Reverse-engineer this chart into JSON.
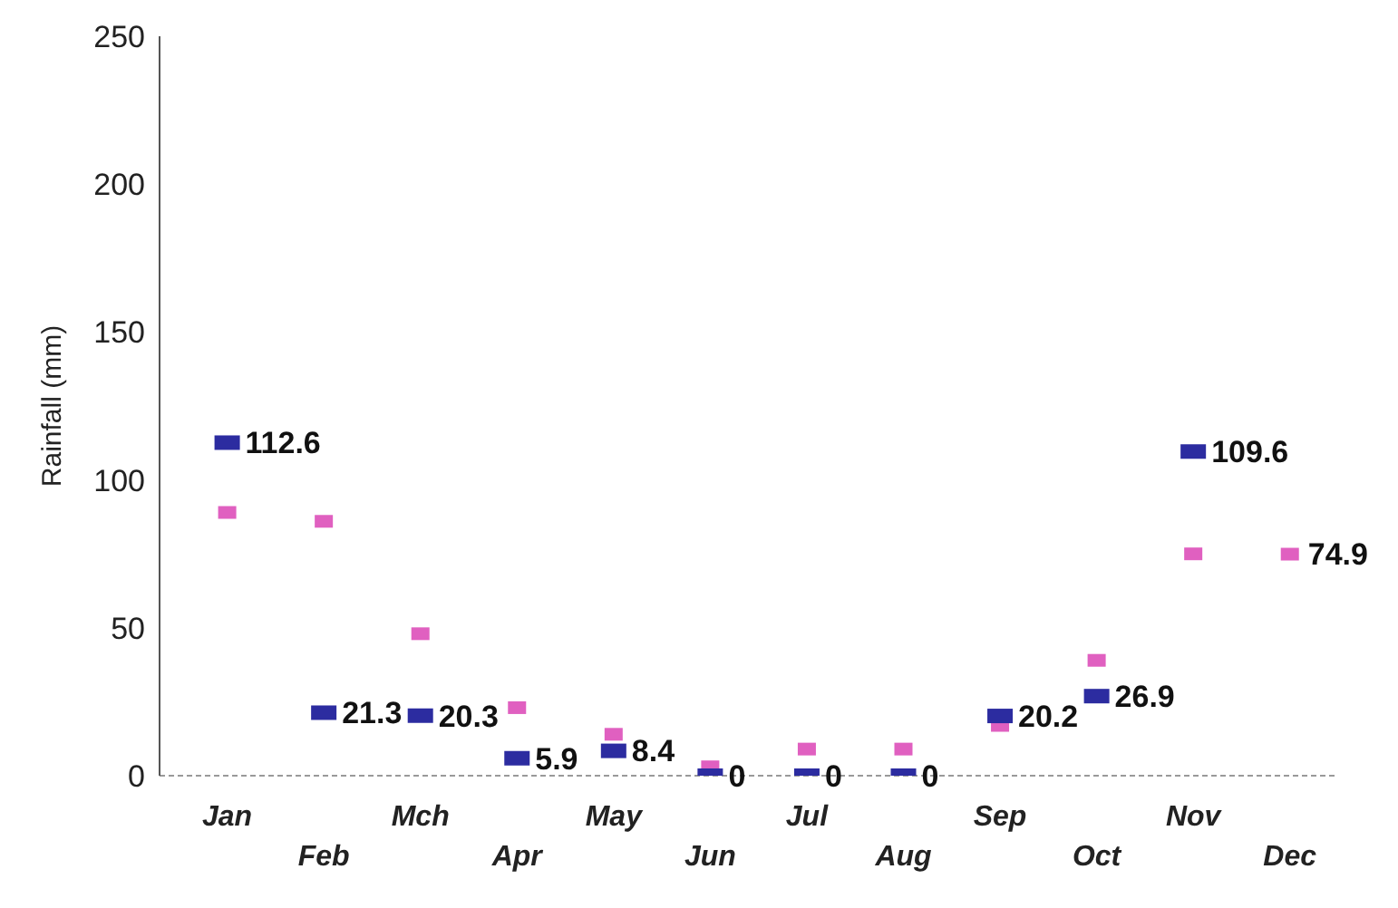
{
  "chart_data": {
    "type": "scatter",
    "ylabel": "Rainfall  (mm)",
    "categories": [
      "Jan",
      "Feb",
      "Mch",
      "Apr",
      "May",
      "Jun",
      "Jul",
      "Aug",
      "Sep",
      "Oct",
      "Nov",
      "Dec"
    ],
    "ylim": [
      0,
      250
    ],
    "yticks": [
      0,
      50,
      100,
      150,
      200,
      250
    ],
    "grid": false,
    "legend": false,
    "marker": "square",
    "series": [
      {
        "color": "#e060c0",
        "values": [
          89,
          86,
          48,
          23,
          14,
          3,
          9,
          9,
          17,
          39,
          75,
          74.9
        ],
        "value_labels": [
          null,
          null,
          null,
          null,
          null,
          null,
          null,
          null,
          null,
          null,
          null,
          "74.9"
        ]
      },
      {
        "color": "#2c2ca0",
        "values": [
          112.6,
          21.3,
          20.3,
          5.9,
          8.4,
          0,
          0,
          0,
          20.2,
          26.9,
          109.6,
          null
        ],
        "value_labels": [
          "112.6",
          "21.3",
          "20.3",
          "5.9",
          "8.4",
          "0",
          "0",
          "0",
          "20.2",
          "26.9",
          "109.6",
          null
        ]
      }
    ]
  }
}
